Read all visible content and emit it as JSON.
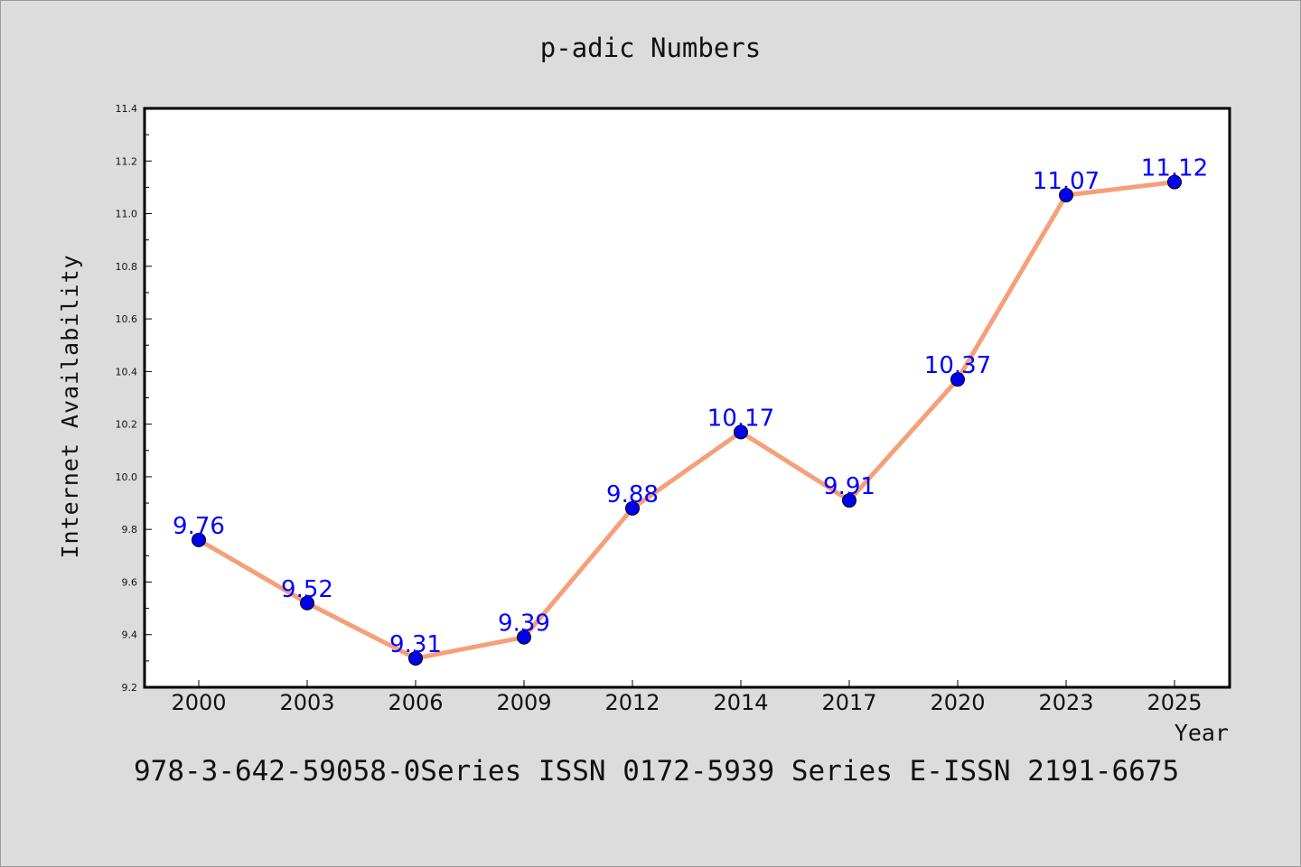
{
  "chart_data": {
    "type": "line",
    "title": "p-adic Numbers",
    "xlabel": "Year",
    "ylabel": "Internet Availability",
    "categories": [
      "2000",
      "2003",
      "2006",
      "2009",
      "2012",
      "2014",
      "2017",
      "2020",
      "2023",
      "2025"
    ],
    "series": [
      {
        "values": [
          9.76,
          9.52,
          9.31,
          9.39,
          9.88,
          10.17,
          9.91,
          10.37,
          11.07,
          11.12
        ],
        "line_color": "#f4a07a",
        "marker_color": "#0000ee",
        "label_color": "#0000ff"
      }
    ],
    "data_labels": [
      "9.76",
      "9.52",
      "9.31",
      "9.39",
      "9.88",
      "10.17",
      "9.91",
      "10.37",
      "11.07",
      "11.12"
    ],
    "ylim": [
      9.2,
      11.4
    ],
    "y_ticks": [
      "9.2",
      "9.4",
      "9.6",
      "9.8",
      "10.0",
      "10.2",
      "10.4",
      "10.6",
      "10.8",
      "11.0",
      "11.2",
      "11.4"
    ],
    "grid": false,
    "legend": "none"
  },
  "footer": {
    "text": "978-3-642-59058-0Series ISSN 0172-5939 Series E-ISSN 2191-6675"
  },
  "colors": {
    "background": "#dcdcdc",
    "plot_background": "#ffffff"
  }
}
